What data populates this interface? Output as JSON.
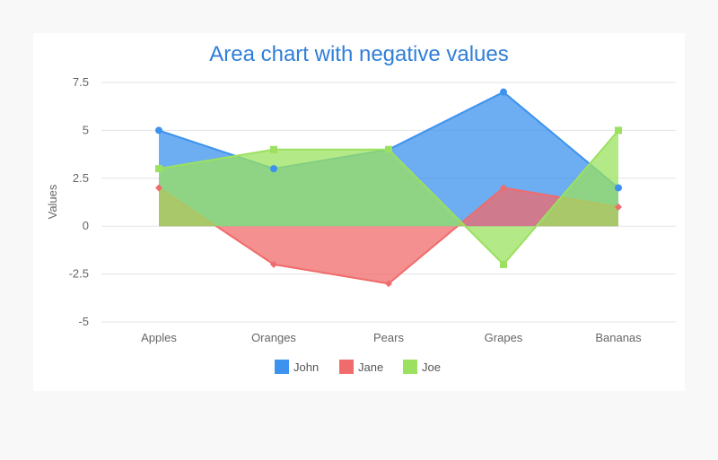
{
  "chart_data": {
    "type": "area",
    "title": "Area chart with negative values",
    "xlabel": "",
    "ylabel": "Values",
    "categories": [
      "Apples",
      "Oranges",
      "Pears",
      "Grapes",
      "Bananas"
    ],
    "ylim": [
      -5,
      7.5
    ],
    "yticks": [
      7.5,
      5,
      2.5,
      0,
      -2.5,
      -5
    ],
    "ytick_labels": [
      "7.5",
      "5",
      "2.5",
      "0",
      "-2.5",
      "-5"
    ],
    "grid": true,
    "legend_position": "bottom",
    "series": [
      {
        "name": "John",
        "values": [
          5,
          3,
          4,
          7,
          2
        ],
        "color": "#3c92ee",
        "marker": "circle"
      },
      {
        "name": "Jane",
        "values": [
          2,
          -2,
          -3,
          2,
          1
        ],
        "color": "#f06b6b",
        "marker": "diamond"
      },
      {
        "name": "Joe",
        "values": [
          3,
          4,
          4,
          -2,
          5
        ],
        "color": "#9be15f",
        "marker": "square"
      }
    ]
  }
}
